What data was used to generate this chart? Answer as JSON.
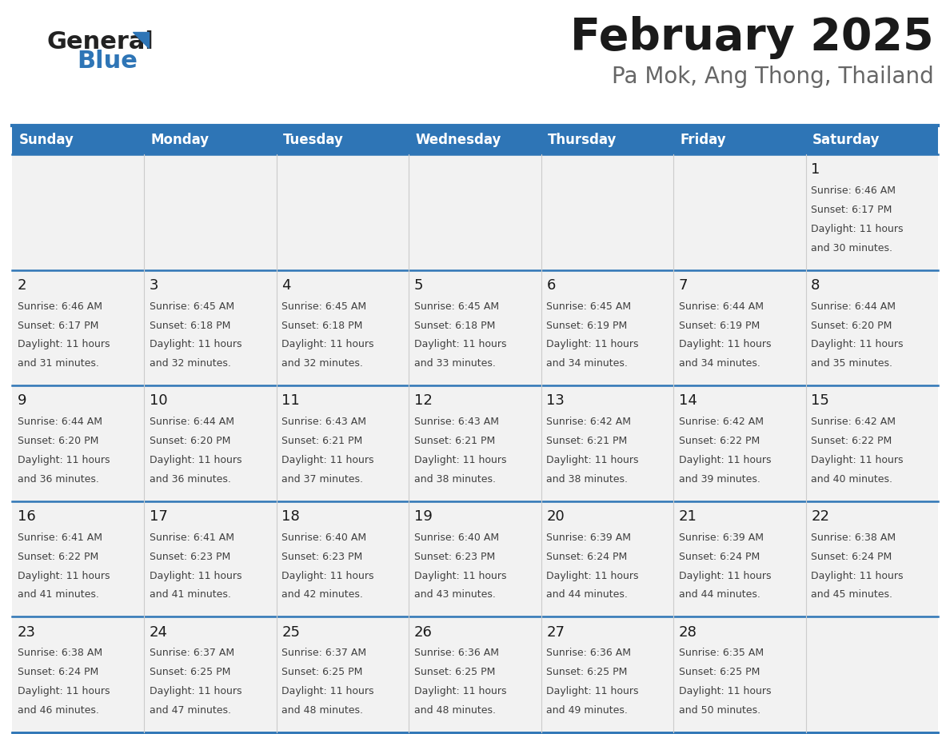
{
  "title": "February 2025",
  "subtitle": "Pa Mok, Ang Thong, Thailand",
  "days_of_week": [
    "Sunday",
    "Monday",
    "Tuesday",
    "Wednesday",
    "Thursday",
    "Friday",
    "Saturday"
  ],
  "header_bg": "#2E75B6",
  "header_text": "#FFFFFF",
  "row_bg_light": "#F2F2F2",
  "row_bg_white": "#FFFFFF",
  "cell_text_color": "#333333",
  "day_num_color": "#1a1a1a",
  "border_color": "#2E75B6",
  "title_color": "#1a1a1a",
  "subtitle_color": "#666666",
  "calendar_data": [
    [
      null,
      null,
      null,
      null,
      null,
      null,
      {
        "day": 1,
        "sunrise": "6:46 AM",
        "sunset": "6:17 PM",
        "daylight": "11 hours and 30 minutes."
      }
    ],
    [
      {
        "day": 2,
        "sunrise": "6:46 AM",
        "sunset": "6:17 PM",
        "daylight": "11 hours and 31 minutes."
      },
      {
        "day": 3,
        "sunrise": "6:45 AM",
        "sunset": "6:18 PM",
        "daylight": "11 hours and 32 minutes."
      },
      {
        "day": 4,
        "sunrise": "6:45 AM",
        "sunset": "6:18 PM",
        "daylight": "11 hours and 32 minutes."
      },
      {
        "day": 5,
        "sunrise": "6:45 AM",
        "sunset": "6:18 PM",
        "daylight": "11 hours and 33 minutes."
      },
      {
        "day": 6,
        "sunrise": "6:45 AM",
        "sunset": "6:19 PM",
        "daylight": "11 hours and 34 minutes."
      },
      {
        "day": 7,
        "sunrise": "6:44 AM",
        "sunset": "6:19 PM",
        "daylight": "11 hours and 34 minutes."
      },
      {
        "day": 8,
        "sunrise": "6:44 AM",
        "sunset": "6:20 PM",
        "daylight": "11 hours and 35 minutes."
      }
    ],
    [
      {
        "day": 9,
        "sunrise": "6:44 AM",
        "sunset": "6:20 PM",
        "daylight": "11 hours and 36 minutes."
      },
      {
        "day": 10,
        "sunrise": "6:44 AM",
        "sunset": "6:20 PM",
        "daylight": "11 hours and 36 minutes."
      },
      {
        "day": 11,
        "sunrise": "6:43 AM",
        "sunset": "6:21 PM",
        "daylight": "11 hours and 37 minutes."
      },
      {
        "day": 12,
        "sunrise": "6:43 AM",
        "sunset": "6:21 PM",
        "daylight": "11 hours and 38 minutes."
      },
      {
        "day": 13,
        "sunrise": "6:42 AM",
        "sunset": "6:21 PM",
        "daylight": "11 hours and 38 minutes."
      },
      {
        "day": 14,
        "sunrise": "6:42 AM",
        "sunset": "6:22 PM",
        "daylight": "11 hours and 39 minutes."
      },
      {
        "day": 15,
        "sunrise": "6:42 AM",
        "sunset": "6:22 PM",
        "daylight": "11 hours and 40 minutes."
      }
    ],
    [
      {
        "day": 16,
        "sunrise": "6:41 AM",
        "sunset": "6:22 PM",
        "daylight": "11 hours and 41 minutes."
      },
      {
        "day": 17,
        "sunrise": "6:41 AM",
        "sunset": "6:23 PM",
        "daylight": "11 hours and 41 minutes."
      },
      {
        "day": 18,
        "sunrise": "6:40 AM",
        "sunset": "6:23 PM",
        "daylight": "11 hours and 42 minutes."
      },
      {
        "day": 19,
        "sunrise": "6:40 AM",
        "sunset": "6:23 PM",
        "daylight": "11 hours and 43 minutes."
      },
      {
        "day": 20,
        "sunrise": "6:39 AM",
        "sunset": "6:24 PM",
        "daylight": "11 hours and 44 minutes."
      },
      {
        "day": 21,
        "sunrise": "6:39 AM",
        "sunset": "6:24 PM",
        "daylight": "11 hours and 44 minutes."
      },
      {
        "day": 22,
        "sunrise": "6:38 AM",
        "sunset": "6:24 PM",
        "daylight": "11 hours and 45 minutes."
      }
    ],
    [
      {
        "day": 23,
        "sunrise": "6:38 AM",
        "sunset": "6:24 PM",
        "daylight": "11 hours and 46 minutes."
      },
      {
        "day": 24,
        "sunrise": "6:37 AM",
        "sunset": "6:25 PM",
        "daylight": "11 hours and 47 minutes."
      },
      {
        "day": 25,
        "sunrise": "6:37 AM",
        "sunset": "6:25 PM",
        "daylight": "11 hours and 48 minutes."
      },
      {
        "day": 26,
        "sunrise": "6:36 AM",
        "sunset": "6:25 PM",
        "daylight": "11 hours and 48 minutes."
      },
      {
        "day": 27,
        "sunrise": "6:36 AM",
        "sunset": "6:25 PM",
        "daylight": "11 hours and 49 minutes."
      },
      {
        "day": 28,
        "sunrise": "6:35 AM",
        "sunset": "6:25 PM",
        "daylight": "11 hours and 50 minutes."
      },
      null
    ]
  ]
}
